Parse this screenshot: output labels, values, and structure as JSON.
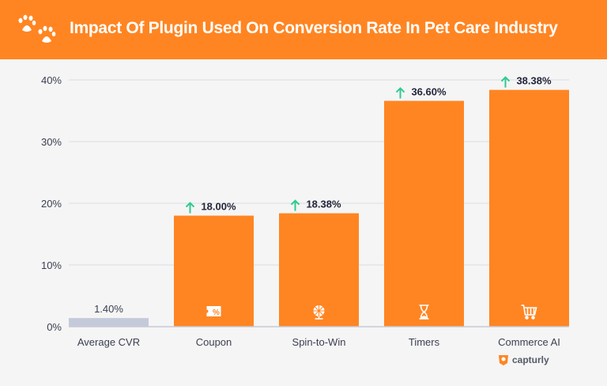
{
  "header": {
    "title": "Impact Of Plugin Used On Conversion Rate In Pet Care Industry",
    "icon": "paw-prints-icon"
  },
  "brand": {
    "name": "capturly"
  },
  "colors": {
    "header": "#ff8522",
    "bar": "#ff8522",
    "baseline_bar": "#c5cadb",
    "arrow": "#2ecc8f",
    "text": "#3a3f50"
  },
  "chart_data": {
    "type": "bar",
    "title": "Impact Of Plugin Used On Conversion Rate In Pet Care Industry",
    "categories": [
      "Average CVR",
      "Coupon",
      "Spin-to-Win",
      "Timers",
      "Commerce AI"
    ],
    "values": [
      1.4,
      18.0,
      18.38,
      36.6,
      38.38
    ],
    "data_labels": [
      "1.40%",
      "18.00%",
      "18.38%",
      "36.60%",
      "38.38%"
    ],
    "up_arrows": [
      false,
      true,
      true,
      true,
      true
    ],
    "bar_icons": [
      "",
      "coupon-icon",
      "prize-wheel-icon",
      "hourglass-icon",
      "shopping-cart-icon"
    ],
    "yticks": [
      0,
      10,
      20,
      30,
      40
    ],
    "ytick_labels": [
      "0%",
      "10%",
      "20%",
      "30%",
      "40%"
    ],
    "ylim": [
      0,
      40
    ],
    "xlabel": "",
    "ylabel": "",
    "grid": true,
    "legend": "none"
  }
}
